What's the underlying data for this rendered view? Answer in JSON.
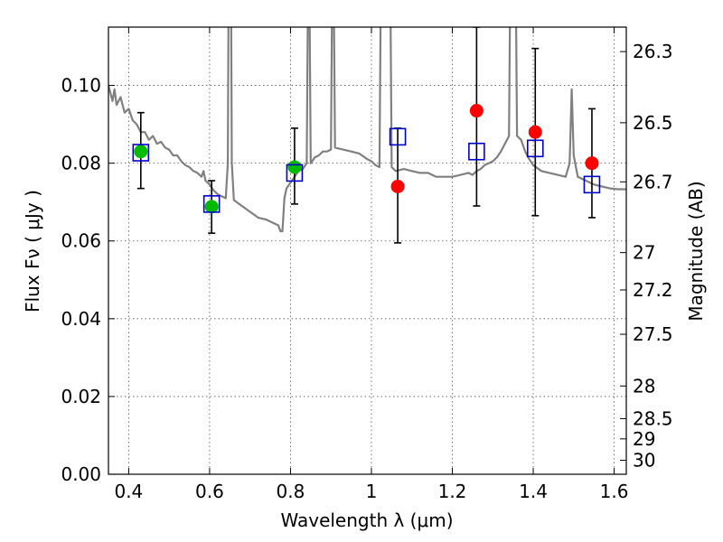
{
  "chart_data": {
    "type": "scatter",
    "xlabel": "Wavelength  λ (μm)",
    "ylabel": "Flux  Fν  ( μJy )",
    "y2label": "Magnitude (AB)",
    "xlim": [
      0.35,
      1.63
    ],
    "ylim": [
      0.0,
      0.115
    ],
    "grid": true,
    "x_ticks": [
      0.4,
      0.6,
      0.8,
      1.0,
      1.2,
      1.4,
      1.6
    ],
    "x_tick_labels": [
      "0.4",
      "0.6",
      "0.8",
      "1",
      "1.2",
      "1.4",
      "1.6"
    ],
    "y_ticks": [
      0.0,
      0.02,
      0.04,
      0.06,
      0.08,
      0.1
    ],
    "y_tick_labels": [
      "0.00",
      "0.02",
      "0.04",
      "0.06",
      "0.08",
      "0.10"
    ],
    "y2_ticks": [
      {
        "label": "26.3",
        "flux": 0.1087
      },
      {
        "label": "26.5",
        "flux": 0.0904
      },
      {
        "label": "26.7",
        "flux": 0.0752
      },
      {
        "label": "27",
        "flux": 0.057
      },
      {
        "label": "27.2",
        "flux": 0.0474
      },
      {
        "label": "27.5",
        "flux": 0.036
      },
      {
        "label": "28",
        "flux": 0.0227
      },
      {
        "label": "28.5",
        "flux": 0.0143
      },
      {
        "label": "29",
        "flux": 0.0091
      },
      {
        "label": "30",
        "flux": 0.0036
      }
    ],
    "colors": {
      "model": "#808080",
      "observed_optical": "#00bb00",
      "observed_nir": "#ff0000",
      "synthetic": "#0000cc",
      "errorbar": "#000000",
      "grid": "#555555"
    },
    "series": [
      {
        "kind": "line",
        "points": [
          [
            0.35,
            0.1
          ],
          [
            0.36,
            0.096
          ],
          [
            0.365,
            0.099
          ],
          [
            0.37,
            0.095
          ],
          [
            0.38,
            0.097
          ],
          [
            0.39,
            0.093
          ],
          [
            0.4,
            0.094
          ],
          [
            0.41,
            0.091
          ],
          [
            0.42,
            0.09
          ],
          [
            0.43,
            0.088
          ],
          [
            0.44,
            0.088
          ],
          [
            0.45,
            0.086
          ],
          [
            0.46,
            0.087
          ],
          [
            0.47,
            0.085
          ],
          [
            0.48,
            0.0855
          ],
          [
            0.49,
            0.084
          ],
          [
            0.5,
            0.0835
          ],
          [
            0.51,
            0.082
          ],
          [
            0.52,
            0.082
          ],
          [
            0.53,
            0.0805
          ],
          [
            0.54,
            0.0795
          ],
          [
            0.55,
            0.079
          ],
          [
            0.56,
            0.078
          ],
          [
            0.57,
            0.0775
          ],
          [
            0.58,
            0.0765
          ],
          [
            0.585,
            0.078
          ],
          [
            0.59,
            0.0755
          ],
          [
            0.6,
            0.0745
          ],
          [
            0.61,
            0.073
          ],
          [
            0.62,
            0.072
          ],
          [
            0.63,
            0.0715
          ],
          [
            0.64,
            0.071
          ],
          [
            0.645,
            0.08
          ],
          [
            0.648,
            0.15
          ],
          [
            0.652,
            0.15
          ],
          [
            0.655,
            0.08
          ],
          [
            0.66,
            0.0705
          ],
          [
            0.68,
            0.069
          ],
          [
            0.7,
            0.0675
          ],
          [
            0.72,
            0.066
          ],
          [
            0.74,
            0.0655
          ],
          [
            0.76,
            0.0645
          ],
          [
            0.77,
            0.064
          ],
          [
            0.775,
            0.0625
          ],
          [
            0.78,
            0.0625
          ],
          [
            0.785,
            0.071
          ],
          [
            0.79,
            0.0735
          ],
          [
            0.8,
            0.075
          ],
          [
            0.81,
            0.0765
          ],
          [
            0.82,
            0.078
          ],
          [
            0.83,
            0.0785
          ],
          [
            0.84,
            0.08
          ],
          [
            0.845,
            0.15
          ],
          [
            0.85,
            0.08
          ],
          [
            0.86,
            0.0815
          ],
          [
            0.87,
            0.082
          ],
          [
            0.88,
            0.083
          ],
          [
            0.89,
            0.083
          ],
          [
            0.9,
            0.0835
          ],
          [
            0.905,
            0.15
          ],
          [
            0.91,
            0.084
          ],
          [
            0.93,
            0.0835
          ],
          [
            0.95,
            0.083
          ],
          [
            0.97,
            0.0825
          ],
          [
            0.99,
            0.081
          ],
          [
            1.0,
            0.0805
          ],
          [
            1.01,
            0.0795
          ],
          [
            1.02,
            0.079
          ],
          [
            1.025,
            0.15
          ],
          [
            1.035,
            0.15
          ],
          [
            1.045,
            0.15
          ],
          [
            1.05,
            0.079
          ],
          [
            1.06,
            0.078
          ],
          [
            1.08,
            0.0785
          ],
          [
            1.1,
            0.078
          ],
          [
            1.12,
            0.0775
          ],
          [
            1.14,
            0.0775
          ],
          [
            1.16,
            0.0765
          ],
          [
            1.18,
            0.0765
          ],
          [
            1.2,
            0.0765
          ],
          [
            1.22,
            0.077
          ],
          [
            1.24,
            0.0775
          ],
          [
            1.25,
            0.077
          ],
          [
            1.26,
            0.078
          ],
          [
            1.27,
            0.0785
          ],
          [
            1.28,
            0.0795
          ],
          [
            1.29,
            0.08
          ],
          [
            1.3,
            0.0805
          ],
          [
            1.31,
            0.0815
          ],
          [
            1.32,
            0.083
          ],
          [
            1.33,
            0.085
          ],
          [
            1.34,
            0.087
          ],
          [
            1.345,
            0.15
          ],
          [
            1.355,
            0.15
          ],
          [
            1.36,
            0.087
          ],
          [
            1.37,
            0.086
          ],
          [
            1.38,
            0.083
          ],
          [
            1.39,
            0.081
          ],
          [
            1.4,
            0.0795
          ],
          [
            1.42,
            0.078
          ],
          [
            1.44,
            0.0775
          ],
          [
            1.46,
            0.077
          ],
          [
            1.48,
            0.0765
          ],
          [
            1.49,
            0.08
          ],
          [
            1.495,
            0.099
          ],
          [
            1.5,
            0.082
          ],
          [
            1.51,
            0.0765
          ],
          [
            1.53,
            0.0755
          ],
          [
            1.55,
            0.0745
          ],
          [
            1.57,
            0.074
          ],
          [
            1.59,
            0.0735
          ],
          [
            1.61,
            0.0733
          ],
          [
            1.63,
            0.0733
          ]
        ]
      },
      {
        "kind": "errorbar",
        "points": [
          {
            "x": 0.43,
            "low": 0.0735,
            "high": 0.093
          },
          {
            "x": 0.605,
            "low": 0.062,
            "high": 0.0755
          },
          {
            "x": 0.81,
            "low": 0.0695,
            "high": 0.089
          },
          {
            "x": 1.065,
            "low": 0.0595,
            "high": 0.089
          },
          {
            "x": 1.26,
            "low": 0.069,
            "high": 0.115
          },
          {
            "x": 1.405,
            "low": 0.0665,
            "high": 0.1095
          },
          {
            "x": 1.545,
            "low": 0.066,
            "high": 0.094
          }
        ]
      },
      {
        "kind": "marker-circle",
        "color_key": "observed_optical",
        "points": [
          [
            0.43,
            0.083
          ],
          [
            0.605,
            0.0688
          ],
          [
            0.81,
            0.079
          ]
        ]
      },
      {
        "kind": "marker-circle",
        "color_key": "observed_nir",
        "points": [
          [
            1.065,
            0.074
          ],
          [
            1.26,
            0.0935
          ],
          [
            1.405,
            0.088
          ],
          [
            1.545,
            0.08
          ]
        ]
      },
      {
        "kind": "marker-square",
        "color_key": "synthetic",
        "points": [
          [
            0.43,
            0.0827
          ],
          [
            0.605,
            0.0695
          ],
          [
            0.81,
            0.0775
          ],
          [
            1.065,
            0.0868
          ],
          [
            1.26,
            0.083
          ],
          [
            1.405,
            0.0838
          ],
          [
            1.545,
            0.0745
          ]
        ]
      }
    ]
  }
}
